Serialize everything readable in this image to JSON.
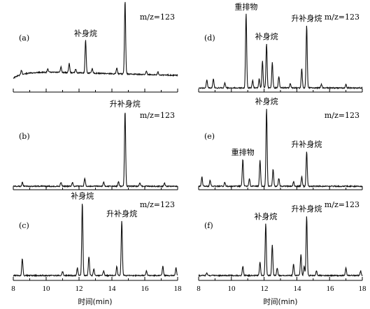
{
  "chart_data": [
    {
      "type": "line",
      "panel_label": "(a)",
      "annotation": "m/z=123",
      "xlim": [
        8,
        18
      ],
      "baseline": "sloped",
      "peaks": [
        {
          "x": 8.5,
          "h": 0.06
        },
        {
          "x": 10.1,
          "h": 0.05
        },
        {
          "x": 10.9,
          "h": 0.07
        },
        {
          "x": 11.4,
          "h": 0.12
        },
        {
          "x": 11.8,
          "h": 0.05
        },
        {
          "x": 12.4,
          "h": 0.43,
          "label": "补身烷"
        },
        {
          "x": 12.8,
          "h": 0.06
        },
        {
          "x": 14.3,
          "h": 0.08
        },
        {
          "x": 14.8,
          "h": 0.96,
          "label": "升补身烷"
        },
        {
          "x": 16.1,
          "h": 0.05
        },
        {
          "x": 16.8,
          "h": 0.04
        }
      ]
    },
    {
      "type": "line",
      "panel_label": "(b)",
      "annotation": "m/z=123",
      "xlim": [
        8,
        18
      ],
      "baseline": "flat",
      "peaks": [
        {
          "x": 8.55,
          "h": 0.05
        },
        {
          "x": 10.9,
          "h": 0.05
        },
        {
          "x": 11.6,
          "h": 0.05
        },
        {
          "x": 12.35,
          "h": 0.1
        },
        {
          "x": 13.5,
          "h": 0.05
        },
        {
          "x": 14.4,
          "h": 0.06
        },
        {
          "x": 14.8,
          "h": 0.97,
          "label": "升补身烷"
        },
        {
          "x": 15.7,
          "h": 0.04
        },
        {
          "x": 17.2,
          "h": 0.04
        }
      ]
    },
    {
      "type": "line",
      "panel_label": "(c)",
      "annotation": "m/z=123",
      "xlim": [
        8,
        18
      ],
      "baseline": "flat",
      "peaks": [
        {
          "x": 8.55,
          "h": 0.22
        },
        {
          "x": 11.0,
          "h": 0.05
        },
        {
          "x": 11.9,
          "h": 0.1
        },
        {
          "x": 12.2,
          "h": 0.95,
          "label": "补身烷"
        },
        {
          "x": 12.6,
          "h": 0.25
        },
        {
          "x": 12.9,
          "h": 0.08
        },
        {
          "x": 13.5,
          "h": 0.06
        },
        {
          "x": 14.3,
          "h": 0.12
        },
        {
          "x": 14.6,
          "h": 0.72,
          "label": "升补身烷"
        },
        {
          "x": 16.1,
          "h": 0.06
        },
        {
          "x": 17.1,
          "h": 0.12
        },
        {
          "x": 17.9,
          "h": 0.1
        }
      ]
    },
    {
      "type": "line",
      "panel_label": "(d)",
      "annotation": "m/z=123",
      "xlim": [
        8,
        18
      ],
      "baseline": "flat",
      "peaks": [
        {
          "x": 8.5,
          "h": 0.1
        },
        {
          "x": 8.9,
          "h": 0.12
        },
        {
          "x": 9.6,
          "h": 0.07
        },
        {
          "x": 10.9,
          "h": 0.97,
          "label": "重排物"
        },
        {
          "x": 11.3,
          "h": 0.1
        },
        {
          "x": 11.7,
          "h": 0.12
        },
        {
          "x": 11.9,
          "h": 0.35
        },
        {
          "x": 12.15,
          "h": 0.58,
          "label": "补身烷"
        },
        {
          "x": 12.5,
          "h": 0.33
        },
        {
          "x": 12.9,
          "h": 0.15
        },
        {
          "x": 13.6,
          "h": 0.06
        },
        {
          "x": 14.3,
          "h": 0.25
        },
        {
          "x": 14.6,
          "h": 0.82,
          "label": "升补身烷"
        },
        {
          "x": 15.5,
          "h": 0.05
        },
        {
          "x": 17.0,
          "h": 0.05
        }
      ]
    },
    {
      "type": "line",
      "panel_label": "(e)",
      "annotation": "m/z=123",
      "xlim": [
        8,
        18
      ],
      "baseline": "flat",
      "peaks": [
        {
          "x": 8.2,
          "h": 0.12
        },
        {
          "x": 8.7,
          "h": 0.08
        },
        {
          "x": 9.6,
          "h": 0.05
        },
        {
          "x": 10.7,
          "h": 0.35,
          "label": "重排物"
        },
        {
          "x": 11.1,
          "h": 0.1
        },
        {
          "x": 11.75,
          "h": 0.33
        },
        {
          "x": 12.15,
          "h": 1.0,
          "label": "补身烷"
        },
        {
          "x": 12.55,
          "h": 0.22
        },
        {
          "x": 12.9,
          "h": 0.1
        },
        {
          "x": 13.8,
          "h": 0.06
        },
        {
          "x": 14.3,
          "h": 0.12
        },
        {
          "x": 14.6,
          "h": 0.45,
          "label": "升补身烷"
        }
      ]
    },
    {
      "type": "line",
      "panel_label": "(f)",
      "annotation": "m/z=123",
      "xlim": [
        8,
        18
      ],
      "baseline": "flat",
      "peaks": [
        {
          "x": 8.5,
          "h": 0.03
        },
        {
          "x": 10.7,
          "h": 0.12
        },
        {
          "x": 11.75,
          "h": 0.18
        },
        {
          "x": 12.1,
          "h": 0.68,
          "label": "补身烷"
        },
        {
          "x": 12.5,
          "h": 0.4
        },
        {
          "x": 12.8,
          "h": 0.1
        },
        {
          "x": 13.8,
          "h": 0.15
        },
        {
          "x": 14.25,
          "h": 0.28
        },
        {
          "x": 14.45,
          "h": 0.12
        },
        {
          "x": 14.6,
          "h": 0.78,
          "label": "升补身烷"
        },
        {
          "x": 15.2,
          "h": 0.06
        },
        {
          "x": 17.0,
          "h": 0.1
        },
        {
          "x": 17.9,
          "h": 0.06
        }
      ]
    }
  ],
  "axis": {
    "ticks": [
      "8",
      "10",
      "12",
      "14",
      "16",
      "18"
    ],
    "xlabel": "时间(min)"
  }
}
